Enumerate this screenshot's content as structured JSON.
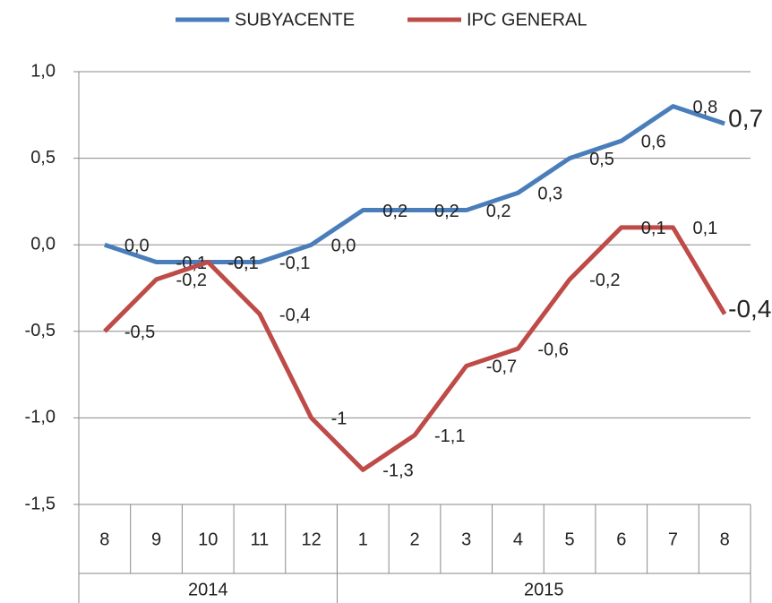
{
  "chart_data": {
    "type": "line",
    "categories": [
      "8",
      "9",
      "10",
      "11",
      "12",
      "1",
      "2",
      "3",
      "4",
      "5",
      "6",
      "7",
      "8"
    ],
    "groups": [
      {
        "name": "2014",
        "span": 5
      },
      {
        "name": "2015",
        "span": 8
      }
    ],
    "series": [
      {
        "name": "SUBYACENTE",
        "color": "#4a7ebb",
        "values": [
          0.0,
          -0.1,
          -0.1,
          -0.1,
          0.0,
          0.2,
          0.2,
          0.2,
          0.3,
          0.5,
          0.6,
          0.8,
          0.7
        ],
        "value_labels": [
          "0,0",
          "-0,1",
          "-0,1",
          "-0,1",
          "0,0",
          "0,2",
          "0,2",
          "0,2",
          "0,3",
          "0,5",
          "0,6",
          "0,8",
          "0,7"
        ]
      },
      {
        "name": "IPC GENERAL",
        "color": "#be4b48",
        "values": [
          -0.5,
          -0.2,
          -0.1,
          -0.4,
          -1.0,
          -1.3,
          -1.1,
          -0.7,
          -0.6,
          -0.2,
          0.1,
          0.1,
          -0.4
        ],
        "value_labels": [
          "-0,5",
          "-0,2",
          "-0,1",
          "-0,4",
          "-1",
          "-1,3",
          "-1,1",
          "-0,7",
          "-0,6",
          "-0,2",
          "0,1",
          "0,1",
          "-0,4"
        ]
      }
    ],
    "ylim": [
      -1.5,
      1.0
    ],
    "yticks": [
      {
        "value": -1.5,
        "label": "-1,5"
      },
      {
        "value": -1.0,
        "label": "-1,0"
      },
      {
        "value": -0.5,
        "label": "-0,5"
      },
      {
        "value": 0.0,
        "label": "0,0"
      },
      {
        "value": 0.5,
        "label": "0,5"
      },
      {
        "value": 1.0,
        "label": "1,0"
      }
    ],
    "grid": true,
    "legend": "top"
  }
}
